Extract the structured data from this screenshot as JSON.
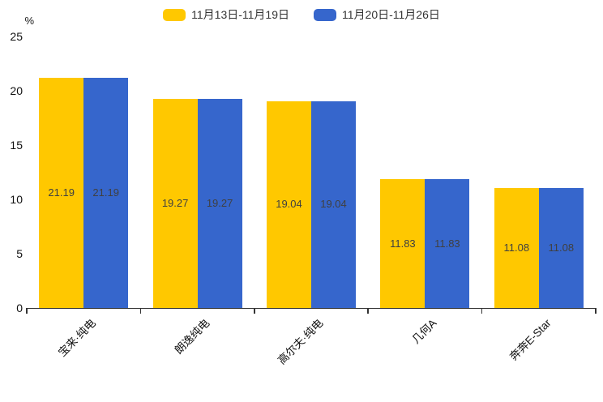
{
  "chart_data": {
    "type": "bar",
    "title": "",
    "xlabel": "",
    "ylabel": "%",
    "ylim": [
      0,
      25
    ],
    "yticks": [
      0,
      5,
      10,
      15,
      20,
      25
    ],
    "grid": false,
    "legend_position": "top-center",
    "categories": [
      "宝来·纯电",
      "朗逸纯电",
      "高尔夫·纯电",
      "几何A",
      "奔奔E-Star"
    ],
    "series": [
      {
        "name": "11月13日-11月19日",
        "color": "#FFC800",
        "values": [
          21.19,
          19.27,
          19.04,
          11.83,
          11.08
        ]
      },
      {
        "name": "11月20日-11月26日",
        "color": "#3666CC",
        "values": [
          21.19,
          19.27,
          19.04,
          11.83,
          11.08
        ]
      }
    ],
    "value_labels_shown": true,
    "value_label_color": "#404040",
    "axis_color": "#333333",
    "text_color": "#111111",
    "background_color": "#ffffff"
  }
}
